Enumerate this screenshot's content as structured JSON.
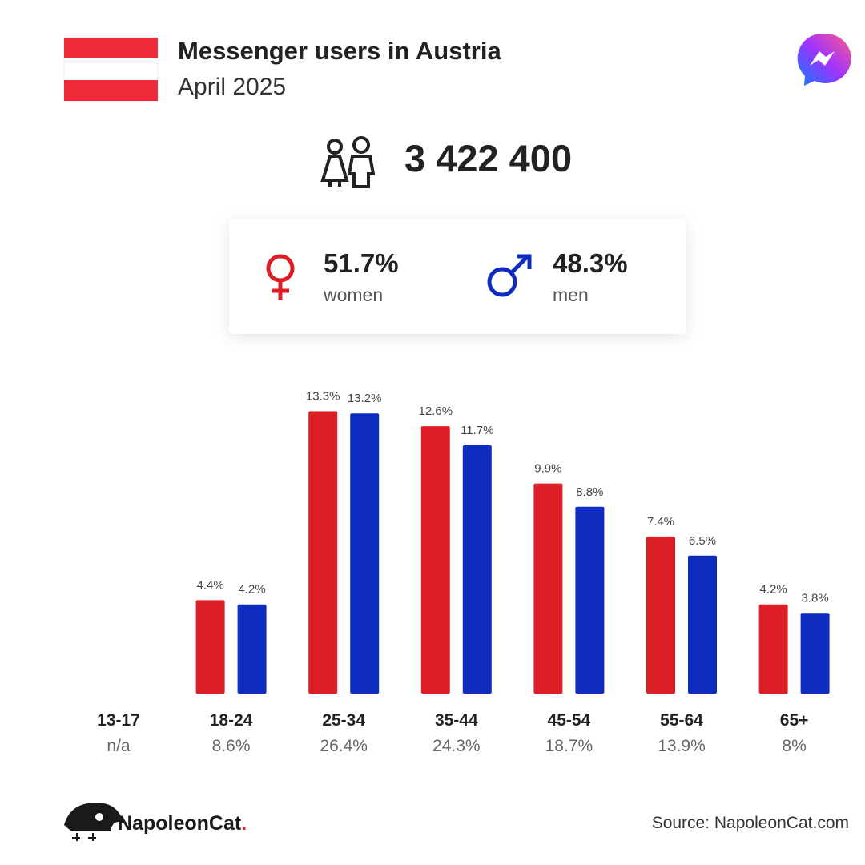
{
  "header": {
    "title": "Messenger users in Austria",
    "subtitle": "April 2025"
  },
  "total_users": "3 422 400",
  "chart_data": {
    "type": "bar",
    "categories": [
      "13-17",
      "18-24",
      "25-34",
      "35-44",
      "45-54",
      "55-64",
      "65+"
    ],
    "category_totals": [
      "n/a",
      "8.6%",
      "26.4%",
      "24.3%",
      "18.7%",
      "13.9%",
      "8%"
    ],
    "series": [
      {
        "name": "women",
        "share": "51.7%",
        "color": "#dc1f26",
        "values": [
          null,
          4.4,
          13.3,
          12.6,
          9.9,
          7.4,
          4.2
        ],
        "value_labels": [
          null,
          "4.4%",
          "13.3%",
          "12.6%",
          "9.9%",
          "7.4%",
          "4.2%"
        ]
      },
      {
        "name": "men",
        "share": "48.3%",
        "color": "#0f2cc1",
        "values": [
          null,
          4.2,
          13.2,
          11.7,
          8.8,
          6.5,
          3.8
        ],
        "value_labels": [
          null,
          "4.2%",
          "13.2%",
          "11.7%",
          "8.8%",
          "6.5%",
          "3.8%"
        ]
      }
    ],
    "ylim": [
      0,
      14
    ]
  },
  "footer": {
    "brand": "NapoleonCat",
    "brand_dot": ".",
    "source": "Source: NapoleonCat.com"
  }
}
